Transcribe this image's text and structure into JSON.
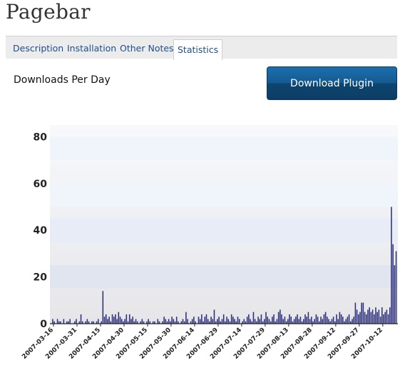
{
  "plugin": {
    "title": "Pagebar"
  },
  "tabs": [
    {
      "label": "Description"
    },
    {
      "label": "Installation"
    },
    {
      "label": "Other Notes"
    },
    {
      "label": "Statistics",
      "active": true
    }
  ],
  "stats": {
    "heading": "Downloads Per Day"
  },
  "download_button": {
    "label": "Download Plugin",
    "color": "#145a91"
  },
  "chart_data": {
    "type": "bar",
    "title": "",
    "xlabel": "",
    "ylabel": "",
    "ylim": [
      0,
      85
    ],
    "yticks": [
      "0",
      "20",
      "40",
      "60",
      "80"
    ],
    "bar_color": "#2b2f7a",
    "x_tick_labels": [
      "2007-03-16",
      "2007-03-31",
      "2007-04-15",
      "2007-04-30",
      "2007-05-15",
      "2007-05-30",
      "2007-06-14",
      "2007-06-29",
      "2007-07-14",
      "2007-07-29",
      "2007-08-13",
      "2007-08-28",
      "2007-09-12",
      "2007-09-27",
      "2007-10-12"
    ],
    "start_date": "2007-03-16",
    "values": [
      0,
      2,
      1,
      0,
      2,
      1,
      1,
      0,
      2,
      0,
      1,
      1,
      2,
      0,
      0,
      1,
      2,
      0,
      1,
      4,
      1,
      0,
      1,
      2,
      1,
      0,
      1,
      1,
      0,
      1,
      2,
      0,
      1,
      14,
      3,
      4,
      2,
      3,
      1,
      4,
      3,
      4,
      2,
      5,
      3,
      2,
      1,
      2,
      4,
      1,
      4,
      2,
      3,
      1,
      2,
      1,
      0,
      1,
      2,
      1,
      0,
      1,
      2,
      1,
      0,
      1,
      1,
      0,
      2,
      1,
      0,
      1,
      3,
      2,
      1,
      2,
      1,
      3,
      2,
      1,
      3,
      1,
      0,
      1,
      2,
      1,
      5,
      2,
      0,
      1,
      2,
      3,
      1,
      0,
      3,
      2,
      4,
      1,
      3,
      4,
      2,
      1,
      3,
      2,
      6,
      1,
      2,
      3,
      1,
      2,
      4,
      1,
      3,
      2,
      1,
      4,
      3,
      2,
      1,
      3,
      2,
      0,
      1,
      2,
      1,
      3,
      4,
      2,
      1,
      5,
      2,
      1,
      3,
      2,
      4,
      1,
      2,
      5,
      3,
      2,
      1,
      3,
      4,
      1,
      2,
      5,
      6,
      4,
      2,
      3,
      1,
      2,
      4,
      3,
      1,
      2,
      3,
      4,
      2,
      3,
      1,
      2,
      4,
      3,
      5,
      2,
      3,
      1,
      2,
      4,
      3,
      1,
      3,
      2,
      4,
      5,
      3,
      2,
      1,
      2,
      3,
      1,
      4,
      2,
      5,
      4,
      3,
      1,
      2,
      3,
      4,
      1,
      2,
      3,
      9,
      6,
      4,
      5,
      9,
      9,
      5,
      4,
      6,
      7,
      5,
      6,
      4,
      7,
      5,
      6,
      3,
      7,
      4,
      5,
      6,
      4,
      7,
      50,
      34,
      25,
      31
    ]
  }
}
